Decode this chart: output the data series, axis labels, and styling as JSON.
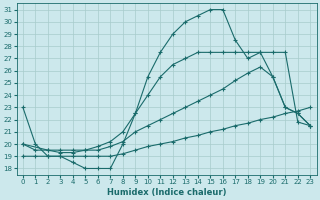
{
  "xlabel": "Humidex (Indice chaleur)",
  "bg_color": "#cce8ec",
  "grid_color": "#a8cccc",
  "line_color": "#1a6b6b",
  "xlim": [
    -0.5,
    23.5
  ],
  "ylim": [
    17.5,
    31.5
  ],
  "xticks": [
    0,
    1,
    2,
    3,
    4,
    5,
    6,
    7,
    8,
    9,
    10,
    11,
    12,
    13,
    14,
    15,
    16,
    17,
    18,
    19,
    20,
    21,
    22,
    23
  ],
  "yticks": [
    18,
    19,
    20,
    21,
    22,
    23,
    24,
    25,
    26,
    27,
    28,
    29,
    30,
    31
  ],
  "line1_x": [
    0,
    1,
    2,
    3,
    4,
    5,
    6,
    7,
    8,
    9,
    10,
    11,
    12,
    13,
    14,
    15,
    16,
    17,
    18,
    19,
    20,
    21,
    22,
    23
  ],
  "line1_y": [
    23,
    20,
    19,
    19,
    18.5,
    18,
    18,
    18,
    20,
    22.5,
    25.5,
    27.5,
    29,
    30,
    30.5,
    31,
    31,
    28.5,
    27,
    27.5,
    25.5,
    23,
    22.5,
    21.5
  ],
  "line2_x": [
    0,
    1,
    2,
    3,
    4,
    5,
    6,
    7,
    8,
    9,
    10,
    11,
    12,
    13,
    14,
    15,
    16,
    17,
    18,
    19,
    20,
    21,
    22,
    23
  ],
  "line2_y": [
    20,
    19.5,
    19.5,
    19.5,
    19.5,
    19.5,
    19.5,
    19.8,
    20.2,
    21.0,
    21.5,
    22.0,
    22.5,
    23.0,
    23.5,
    24.0,
    24.5,
    25.2,
    25.8,
    26.3,
    25.5,
    23.0,
    22.5,
    21.5
  ],
  "line3_x": [
    0,
    2,
    3,
    4,
    5,
    6,
    7,
    8,
    9,
    10,
    11,
    12,
    13,
    14,
    15,
    16,
    17,
    18,
    19,
    20,
    21,
    22,
    23
  ],
  "line3_y": [
    20,
    19.5,
    19.3,
    19.3,
    19.5,
    19.8,
    20.2,
    21.0,
    22.5,
    24.0,
    25.5,
    26.5,
    27.0,
    27.5,
    27.5,
    27.5,
    27.5,
    27.5,
    27.5,
    27.5,
    27.5,
    21.8,
    21.5
  ],
  "line4_x": [
    0,
    1,
    2,
    3,
    4,
    5,
    6,
    7,
    8,
    9,
    10,
    11,
    12,
    13,
    14,
    15,
    16,
    17,
    18,
    19,
    20,
    21,
    22,
    23
  ],
  "line4_y": [
    19,
    19,
    19,
    19,
    19,
    19,
    19,
    19,
    19.2,
    19.5,
    19.8,
    20.0,
    20.2,
    20.5,
    20.7,
    21.0,
    21.2,
    21.5,
    21.7,
    22.0,
    22.2,
    22.5,
    22.7,
    23.0
  ]
}
